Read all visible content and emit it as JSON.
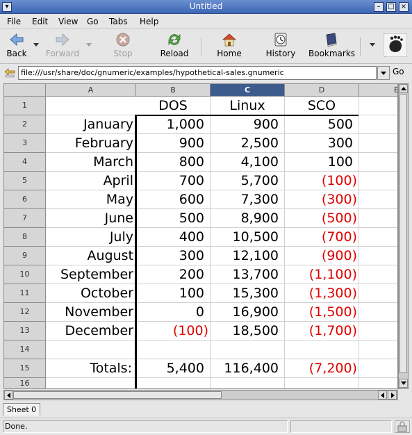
{
  "window": {
    "title": "Untitled"
  },
  "menu": [
    {
      "label": "File"
    },
    {
      "label": "Edit"
    },
    {
      "label": "View"
    },
    {
      "label": "Go"
    },
    {
      "label": "Tabs"
    },
    {
      "label": "Help"
    }
  ],
  "toolbar": {
    "back": "Back",
    "forward": "Forward",
    "stop": "Stop",
    "reload": "Reload",
    "home": "Home",
    "history": "History",
    "bookmarks": "Bookmarks"
  },
  "location": {
    "url": "file:///usr/share/doc/gnumeric/examples/hypothetical-sales.gnumeric",
    "go_label": "Go"
  },
  "sheet": {
    "columns": [
      "A",
      "B",
      "C",
      "D",
      "E"
    ],
    "selected_column": "C",
    "row_numbers": [
      "1",
      "2",
      "3",
      "4",
      "5",
      "6",
      "7",
      "8",
      "9",
      "10",
      "11",
      "12",
      "13",
      "14",
      "15",
      "16"
    ],
    "headers": {
      "b": "DOS",
      "c": "Linux",
      "d": "SCO"
    },
    "rows": [
      {
        "a": "January",
        "b": "1,000",
        "c": "900",
        "d": "500"
      },
      {
        "a": "February",
        "b": "900",
        "c": "2,500",
        "d": "300"
      },
      {
        "a": "March",
        "b": "800",
        "c": "4,100",
        "d": "100"
      },
      {
        "a": "April",
        "b": "700",
        "c": "5,700",
        "d": "(100)"
      },
      {
        "a": "May",
        "b": "600",
        "c": "7,300",
        "d": "(300)"
      },
      {
        "a": "June",
        "b": "500",
        "c": "8,900",
        "d": "(500)"
      },
      {
        "a": "July",
        "b": "400",
        "c": "10,500",
        "d": "(700)"
      },
      {
        "a": "August",
        "b": "300",
        "c": "12,100",
        "d": "(900)"
      },
      {
        "a": "September",
        "b": "200",
        "c": "13,700",
        "d": "(1,100)"
      },
      {
        "a": "October",
        "b": "100",
        "c": "15,300",
        "d": "(1,300)"
      },
      {
        "a": "November",
        "b": "0",
        "c": "16,900",
        "d": "(1,500)"
      },
      {
        "a": "December",
        "b": "(100)",
        "c": "18,500",
        "d": "(1,700)"
      }
    ],
    "totals": {
      "a": "Totals:",
      "b": "5,400",
      "c": "116,400",
      "d": "(7,200)"
    },
    "negative_color": "#e00000",
    "selected_header_color": "#3d5b8c"
  },
  "tabs": {
    "sheet": "Sheet 0"
  },
  "status": {
    "text": "Done."
  }
}
